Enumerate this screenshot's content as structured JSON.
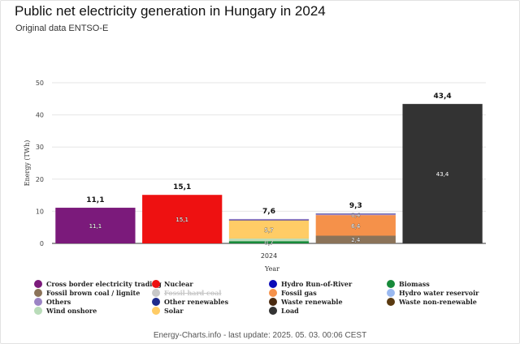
{
  "header": {
    "title": "Public net electricity generation in Hungary in 2024",
    "subtitle": "Original data ENTSO-E"
  },
  "footer": {
    "text": "Energy-Charts.info - last update: 2025. 05. 03. 00:06 CEST"
  },
  "chart_data": {
    "type": "bar",
    "stacked": true,
    "x_category": "2024",
    "xlabel": "Year",
    "ylabel": "Energy (TWh)",
    "ylim": [
      0,
      50
    ],
    "yticks": [
      0,
      10,
      20,
      30,
      40,
      50
    ],
    "grid": true,
    "legend_position": "bottom",
    "bars": [
      {
        "total_label": "11,1",
        "segments": [
          {
            "series": "Cross border electricity trading",
            "value": 11.1,
            "label": "11,1"
          }
        ]
      },
      {
        "total_label": "15,1",
        "segments": [
          {
            "series": "Nuclear",
            "value": 15.1,
            "label": "15,1"
          }
        ]
      },
      {
        "total_label": "7,6",
        "segments": [
          {
            "series": "Biomass",
            "value": 0.7,
            "label": "0,7"
          },
          {
            "series": "Wind onshore",
            "value": 0.8,
            "label": ""
          },
          {
            "series": "Solar",
            "value": 5.7,
            "label": "5,7"
          },
          {
            "series": "Hydro Run-of-River",
            "value": 0.2,
            "label": ""
          },
          {
            "series": "Others",
            "value": 0.2,
            "label": ""
          }
        ]
      },
      {
        "total_label": "9,3",
        "segments": [
          {
            "series": "Fossil brown coal / lignite",
            "value": 2.4,
            "label": "2,4"
          },
          {
            "series": "Fossil gas",
            "value": 6.4,
            "label": "6,4"
          },
          {
            "series": "Others",
            "value": 0.4,
            "label": "0,4"
          },
          {
            "series": "Other renewables",
            "value": 0.1,
            "label": ""
          }
        ]
      },
      {
        "total_label": "43,4",
        "segments": [
          {
            "series": "Load",
            "value": 43.4,
            "label": "43,4"
          }
        ]
      }
    ],
    "legend": [
      {
        "name": "Cross border electricity trading",
        "color": "#7b1a7b",
        "visible": true
      },
      {
        "name": "Nuclear",
        "color": "#ee1111",
        "visible": true
      },
      {
        "name": "Hydro Run-of-River",
        "color": "#0a0ab8",
        "visible": true
      },
      {
        "name": "Biomass",
        "color": "#178a3a",
        "visible": true
      },
      {
        "name": "Fossil brown coal / lignite",
        "color": "#8b7359",
        "visible": true
      },
      {
        "name": "Fossil hard coal",
        "color": "#c8c8c8",
        "visible": false
      },
      {
        "name": "Fossil gas",
        "color": "#f5914a",
        "visible": true
      },
      {
        "name": "Hydro water reservoir",
        "color": "#9ab9f0",
        "visible": true
      },
      {
        "name": "Others",
        "color": "#9b84c4",
        "visible": true
      },
      {
        "name": "Other renewables",
        "color": "#1f2b8c",
        "visible": true
      },
      {
        "name": "Waste renewable",
        "color": "#4a2a10",
        "visible": true
      },
      {
        "name": "Waste non-renewable",
        "color": "#5a3a10",
        "visible": true
      },
      {
        "name": "Wind onshore",
        "color": "#b9dcb9",
        "visible": true
      },
      {
        "name": "Solar",
        "color": "#ffcc66",
        "visible": true
      },
      {
        "name": "Load",
        "color": "#333333",
        "visible": true
      }
    ]
  }
}
